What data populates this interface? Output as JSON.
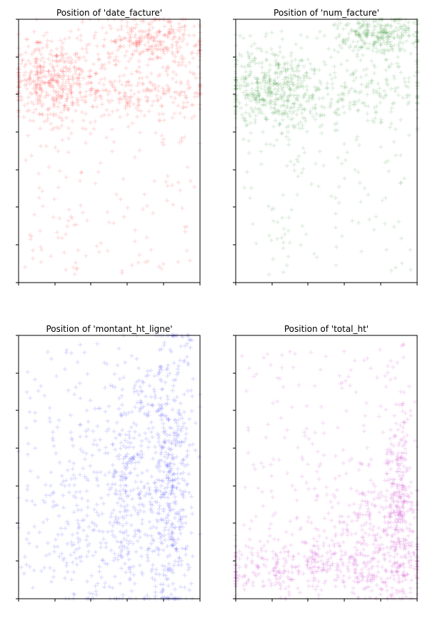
{
  "chart_data": [
    {
      "type": "scatter",
      "title": "Position of 'date_facture'",
      "color": "#ff0000",
      "marker": "plus",
      "xlim": [
        0,
        1
      ],
      "ylim": [
        0,
        1
      ],
      "grid": false,
      "density": {
        "clusters": [
          {
            "x": 0.75,
            "y": 0.92,
            "sx": 0.16,
            "sy": 0.05,
            "w": 0.25
          },
          {
            "x": 0.18,
            "y": 0.78,
            "sx": 0.12,
            "sy": 0.08,
            "w": 0.3
          },
          {
            "x": 0.55,
            "y": 0.72,
            "sx": 0.3,
            "sy": 0.05,
            "w": 0.25
          }
        ],
        "uniform_fraction": 0.2
      }
    },
    {
      "type": "scatter",
      "title": "Position of 'num_facture'",
      "color": "#007f00",
      "marker": "plus",
      "xlim": [
        0,
        1
      ],
      "ylim": [
        0,
        1
      ],
      "grid": false,
      "density": {
        "clusters": [
          {
            "x": 0.8,
            "y": 0.94,
            "sx": 0.12,
            "sy": 0.04,
            "w": 0.25
          },
          {
            "x": 0.18,
            "y": 0.75,
            "sx": 0.12,
            "sy": 0.09,
            "w": 0.3
          },
          {
            "x": 0.55,
            "y": 0.72,
            "sx": 0.3,
            "sy": 0.06,
            "w": 0.25
          }
        ],
        "uniform_fraction": 0.2
      }
    },
    {
      "type": "scatter",
      "title": "Position of 'montant_ht_ligne'",
      "color": "#0000ff",
      "marker": "plus",
      "xlim": [
        0,
        1
      ],
      "ylim": [
        0,
        1
      ],
      "grid": false,
      "density": {
        "clusters": [
          {
            "x": 0.82,
            "y": 0.45,
            "sx": 0.07,
            "sy": 0.28,
            "w": 0.45
          },
          {
            "x": 0.6,
            "y": 0.45,
            "sx": 0.05,
            "sy": 0.25,
            "w": 0.2
          },
          {
            "x": 0.35,
            "y": 0.3,
            "sx": 0.15,
            "sy": 0.2,
            "w": 0.15
          }
        ],
        "uniform_fraction": 0.2
      }
    },
    {
      "type": "scatter",
      "title": "Position of 'total_ht'",
      "color": "#bf00bf",
      "marker": "plus",
      "xlim": [
        0,
        1
      ],
      "ylim": [
        0,
        1
      ],
      "grid": false,
      "density": {
        "clusters": [
          {
            "x": 0.9,
            "y": 0.35,
            "sx": 0.04,
            "sy": 0.2,
            "w": 0.25
          },
          {
            "x": 0.45,
            "y": 0.12,
            "sx": 0.35,
            "sy": 0.06,
            "w": 0.35
          },
          {
            "x": 0.75,
            "y": 0.25,
            "sx": 0.15,
            "sy": 0.12,
            "w": 0.2
          }
        ],
        "uniform_fraction": 0.2
      }
    }
  ]
}
